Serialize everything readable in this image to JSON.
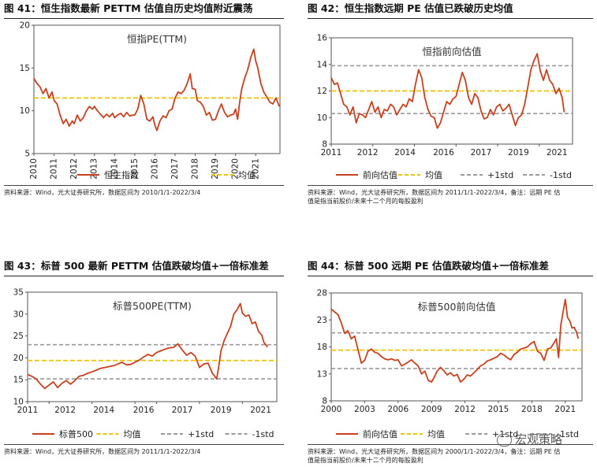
{
  "panels": [
    {
      "id": "p41",
      "title": "图 41：恒生指数最新 PETTM 估值自历史均值附近震荡",
      "source": "资料来源：Wind，光大证券研究所，数据区间为 2010/1/1-2022/3/4",
      "legend": [
        {
          "label": "恒生指数",
          "kind": "series"
        },
        {
          "label": "均值",
          "kind": "mean"
        }
      ]
    },
    {
      "id": "p42",
      "title": "图 42：恒生指数远期 PE 估值已跌破历史均值",
      "source": "资料来源：Wind，光大证券研究所，数据区间为 2011/1/1-2022/3/4，备注：远期 PE 估值是指当前股价/未来十二个月的每股盈利",
      "source_lines": [
        "资料来源：Wind，光大证券研究所，数据区间为 2011/1/1-2022/3/4，备注：远期 PE 估",
        "值是指当前股价/未来十二个月的每股盈利"
      ],
      "legend": [
        {
          "label": "前向估值",
          "kind": "series"
        },
        {
          "label": "均值",
          "kind": "mean"
        },
        {
          "label": "+1std",
          "kind": "std"
        },
        {
          "label": "-1std",
          "kind": "std"
        }
      ]
    },
    {
      "id": "p43",
      "title": "图 43：标普 500 最新 PETTM 估值跌破均值+一倍标准差",
      "source": "资料来源：Wind，光大证券研究所，数据区间为 2011/1/1-2022/3/4",
      "legend": [
        {
          "label": "标普500",
          "kind": "series"
        },
        {
          "label": "均值",
          "kind": "mean"
        },
        {
          "label": "+1std",
          "kind": "std"
        },
        {
          "label": "-1std",
          "kind": "std"
        }
      ]
    },
    {
      "id": "p44",
      "title": "图 44：标普 500 远期 PE 估值跌破均值+一倍标准差",
      "source": "资料来源：Wind，光大证券研究所，数据区间为 2000/1/1-2022/3/4，备注：远期 PE 估值是指当前股价/未来十二个月的每股盈利",
      "source_lines": [
        "资料来源：Wind，光大证券研究所，数据区间为 2000/1/1-2022/3/4，备注：远期 PE 估",
        "值是指当前股价/未来十二个月的每股盈利"
      ],
      "legend": [
        {
          "label": "前向估值",
          "kind": "series"
        },
        {
          "label": "均值",
          "kind": "mean"
        },
        {
          "label": "+1std",
          "kind": "std"
        },
        {
          "label": "-1std",
          "kind": "std"
        }
      ]
    }
  ],
  "watermark": "宏观策略",
  "colors": {
    "series": "#c8401e",
    "mean": "#f2c200",
    "std": "#9a9a9a",
    "axis": "#555555"
  },
  "chart_data": [
    {
      "type": "line",
      "title": "恒指PE(TTM)",
      "ylim": [
        5,
        20
      ],
      "yticks": [
        5,
        10,
        15,
        20
      ],
      "xlim": [
        2010,
        2022.2
      ],
      "xticks": [
        2010,
        2011,
        2012,
        2013,
        2014,
        2015,
        2016,
        2017,
        2018,
        2019,
        2020,
        2021
      ],
      "mean": 11.5,
      "series": [
        {
          "name": "恒生指数",
          "x": [
            2010.0,
            2010.15,
            2010.3,
            2010.45,
            2010.6,
            2010.75,
            2010.9,
            2011.0,
            2011.15,
            2011.3,
            2011.45,
            2011.6,
            2011.75,
            2011.9,
            2012.0,
            2012.15,
            2012.3,
            2012.45,
            2012.6,
            2012.75,
            2012.9,
            2013.0,
            2013.15,
            2013.3,
            2013.45,
            2013.6,
            2013.75,
            2013.9,
            2014.0,
            2014.15,
            2014.3,
            2014.45,
            2014.6,
            2014.75,
            2014.9,
            2015.0,
            2015.15,
            2015.3,
            2015.45,
            2015.6,
            2015.75,
            2015.9,
            2016.0,
            2016.1,
            2016.25,
            2016.4,
            2016.55,
            2016.7,
            2016.85,
            2017.0,
            2017.15,
            2017.3,
            2017.45,
            2017.6,
            2017.75,
            2017.85,
            2018.0,
            2018.1,
            2018.25,
            2018.4,
            2018.55,
            2018.7,
            2018.85,
            2019.0,
            2019.15,
            2019.3,
            2019.45,
            2019.6,
            2019.75,
            2019.9,
            2020.0,
            2020.1,
            2020.2,
            2020.3,
            2020.45,
            2020.6,
            2020.75,
            2020.9,
            2021.0,
            2021.1,
            2021.25,
            2021.4,
            2021.55,
            2021.7,
            2021.85,
            2022.0,
            2022.17
          ],
          "values": [
            13.8,
            13.2,
            12.8,
            12.0,
            12.6,
            11.5,
            12.2,
            11.2,
            10.8,
            9.5,
            8.5,
            9.0,
            8.2,
            8.8,
            8.5,
            9.5,
            8.8,
            9.2,
            10.0,
            10.5,
            10.2,
            10.5,
            10.0,
            9.6,
            9.2,
            9.6,
            9.3,
            9.7,
            9.2,
            9.5,
            9.7,
            9.3,
            9.8,
            9.4,
            9.5,
            9.5,
            10.2,
            11.8,
            10.8,
            9.0,
            8.8,
            9.3,
            8.3,
            7.7,
            8.8,
            9.4,
            9.2,
            10.0,
            10.2,
            11.5,
            12.2,
            12.0,
            12.4,
            13.2,
            14.3,
            12.6,
            12.5,
            11.2,
            11.0,
            10.5,
            9.5,
            9.8,
            8.9,
            9.0,
            10.0,
            10.8,
            9.8,
            9.3,
            9.5,
            9.6,
            10.2,
            9.0,
            11.0,
            12.5,
            13.8,
            14.8,
            16.2,
            17.2,
            15.8,
            15.0,
            13.2,
            12.2,
            11.6,
            11.0,
            10.8,
            11.5,
            10.5
          ]
        }
      ]
    },
    {
      "type": "line",
      "title": "恒指前向估值",
      "ylim": [
        8,
        16
      ],
      "yticks": [
        8,
        10,
        12,
        14,
        16
      ],
      "xlim": [
        2011,
        2022.6
      ],
      "xticks": [
        2011,
        2013,
        2015,
        2017,
        2019,
        2021
      ],
      "xticklabels": [
        "2011",
        "2012",
        "2014",
        "2016",
        "2017",
        "2019",
        "2021"
      ],
      "xticklabel_x": [
        2011,
        2012.75,
        2014.55,
        2016.4,
        2018.2,
        2020.0,
        2021.85
      ],
      "mean": 12.0,
      "std_upper": 13.9,
      "std_lower": 10.3,
      "series": [
        {
          "name": "前向估值",
          "x": [
            2011.0,
            2011.15,
            2011.3,
            2011.45,
            2011.6,
            2011.75,
            2011.9,
            2012.05,
            2012.2,
            2012.35,
            2012.5,
            2012.65,
            2012.8,
            2012.95,
            2013.1,
            2013.25,
            2013.4,
            2013.55,
            2013.7,
            2013.85,
            2014.0,
            2014.15,
            2014.3,
            2014.45,
            2014.6,
            2014.75,
            2014.9,
            2015.05,
            2015.2,
            2015.35,
            2015.5,
            2015.65,
            2015.8,
            2015.95,
            2016.1,
            2016.25,
            2016.4,
            2016.55,
            2016.7,
            2016.85,
            2017.0,
            2017.15,
            2017.3,
            2017.45,
            2017.6,
            2017.75,
            2017.9,
            2018.05,
            2018.2,
            2018.35,
            2018.5,
            2018.65,
            2018.8,
            2018.95,
            2019.1,
            2019.25,
            2019.4,
            2019.55,
            2019.7,
            2019.85,
            2020.0,
            2020.15,
            2020.3,
            2020.45,
            2020.6,
            2020.75,
            2020.9,
            2021.05,
            2021.2,
            2021.35,
            2021.5,
            2021.65,
            2021.8,
            2021.95,
            2022.1,
            2022.2
          ],
          "values": [
            13.0,
            12.5,
            12.6,
            11.8,
            11.0,
            10.8,
            10.2,
            10.8,
            9.6,
            10.3,
            10.2,
            10.0,
            10.6,
            11.2,
            10.4,
            10.8,
            10.0,
            10.6,
            10.5,
            11.0,
            10.8,
            10.2,
            10.6,
            11.0,
            10.8,
            11.4,
            11.2,
            12.5,
            13.6,
            13.0,
            11.5,
            10.6,
            10.1,
            10.0,
            9.2,
            9.6,
            10.4,
            11.2,
            11.0,
            11.4,
            11.6,
            12.5,
            13.4,
            12.8,
            11.5,
            11.0,
            11.8,
            11.5,
            10.5,
            9.9,
            10.0,
            10.6,
            10.2,
            10.8,
            11.0,
            10.5,
            10.7,
            11.0,
            10.2,
            9.4,
            10.0,
            10.2,
            11.0,
            12.3,
            13.6,
            14.3,
            14.8,
            13.5,
            12.8,
            13.6,
            12.8,
            12.5,
            11.8,
            12.2,
            11.5,
            10.4
          ]
        }
      ]
    },
    {
      "type": "line",
      "title": "标普500PE(TTM)",
      "ylim": [
        10,
        35
      ],
      "yticks": [
        10,
        15,
        20,
        25,
        30,
        35
      ],
      "xlim": [
        2011,
        2022.6
      ],
      "xticks": [
        2011,
        2012,
        2014,
        2016,
        2017,
        2019,
        2021
      ],
      "xticklabels": [
        "2011",
        "2012",
        "2014",
        "2016",
        "2017",
        "2019",
        "2021"
      ],
      "xticklabel_x": [
        2011,
        2012.75,
        2014.55,
        2016.4,
        2018.2,
        2020.0,
        2021.85
      ],
      "mean": 19.4,
      "std_upper": 23.0,
      "std_lower": 15.2,
      "series": [
        {
          "name": "标普500",
          "x": [
            2011.0,
            2011.2,
            2011.4,
            2011.6,
            2011.8,
            2012.0,
            2012.2,
            2012.4,
            2012.6,
            2012.8,
            2013.0,
            2013.2,
            2013.4,
            2013.6,
            2013.8,
            2014.0,
            2014.2,
            2014.4,
            2014.6,
            2014.8,
            2015.0,
            2015.2,
            2015.4,
            2015.6,
            2015.8,
            2016.0,
            2016.2,
            2016.4,
            2016.6,
            2016.8,
            2017.0,
            2017.2,
            2017.4,
            2017.6,
            2017.8,
            2018.0,
            2018.2,
            2018.4,
            2018.6,
            2018.8,
            2019.0,
            2019.2,
            2019.4,
            2019.6,
            2019.8,
            2019.9,
            2020.0,
            2020.15,
            2020.3,
            2020.45,
            2020.6,
            2020.75,
            2020.9,
            2021.0,
            2021.15,
            2021.3,
            2021.45,
            2021.6,
            2021.75,
            2021.9,
            2022.0,
            2022.17
          ],
          "values": [
            16.2,
            15.8,
            15.2,
            14.0,
            13.0,
            13.8,
            14.5,
            13.2,
            14.2,
            14.8,
            14.0,
            14.8,
            15.8,
            16.0,
            16.5,
            16.8,
            17.2,
            17.6,
            17.8,
            18.0,
            18.2,
            18.6,
            19.0,
            18.4,
            18.5,
            19.0,
            19.5,
            20.2,
            20.8,
            20.4,
            21.2,
            21.6,
            22.0,
            22.3,
            22.4,
            23.2,
            21.8,
            20.6,
            21.2,
            20.4,
            17.8,
            18.6,
            18.8,
            16.5,
            15.2,
            18.0,
            21.6,
            24.0,
            25.6,
            27.2,
            30.0,
            31.0,
            32.4,
            30.2,
            29.5,
            29.8,
            27.8,
            28.2,
            26.0,
            25.2,
            23.5,
            22.5
          ]
        }
      ]
    },
    {
      "type": "line",
      "title": "标普500前向估值",
      "ylim": [
        8,
        28
      ],
      "yticks": [
        8,
        13,
        18,
        23,
        28
      ],
      "xlim": [
        2000,
        2022.5
      ],
      "xticks": [
        2000,
        2003,
        2006,
        2009,
        2012,
        2015,
        2018,
        2021
      ],
      "mean": 17.4,
      "std_upper": 20.6,
      "std_lower": 14.0,
      "series": [
        {
          "name": "前向估值",
          "x": [
            2000.0,
            2000.3,
            2000.6,
            2000.9,
            2001.2,
            2001.5,
            2001.8,
            2002.1,
            2002.4,
            2002.7,
            2003.0,
            2003.3,
            2003.6,
            2003.9,
            2004.2,
            2004.5,
            2004.8,
            2005.1,
            2005.4,
            2005.7,
            2006.0,
            2006.3,
            2006.6,
            2006.9,
            2007.2,
            2007.5,
            2007.8,
            2008.1,
            2008.4,
            2008.7,
            2009.0,
            2009.2,
            2009.5,
            2009.8,
            2010.1,
            2010.4,
            2010.7,
            2011.0,
            2011.3,
            2011.6,
            2011.9,
            2012.2,
            2012.5,
            2012.8,
            2013.1,
            2013.4,
            2013.7,
            2014.0,
            2014.3,
            2014.6,
            2014.9,
            2015.2,
            2015.5,
            2015.8,
            2016.1,
            2016.4,
            2016.7,
            2017.0,
            2017.3,
            2017.6,
            2017.9,
            2018.2,
            2018.5,
            2018.8,
            2019.1,
            2019.4,
            2019.7,
            2020.0,
            2020.2,
            2020.4,
            2020.6,
            2020.8,
            2021.0,
            2021.2,
            2021.4,
            2021.6,
            2021.8,
            2022.0,
            2022.17
          ],
          "values": [
            25.0,
            24.5,
            24.0,
            22.5,
            20.5,
            21.0,
            19.5,
            20.0,
            17.5,
            15.0,
            15.5,
            17.2,
            17.6,
            17.0,
            16.8,
            16.2,
            15.8,
            15.6,
            15.8,
            15.5,
            15.6,
            14.5,
            14.8,
            15.2,
            15.6,
            15.0,
            14.5,
            13.0,
            13.5,
            11.8,
            11.5,
            12.2,
            13.5,
            14.2,
            13.6,
            12.8,
            13.2,
            12.6,
            12.9,
            11.5,
            12.0,
            12.8,
            12.6,
            13.2,
            13.8,
            14.5,
            14.8,
            15.4,
            15.6,
            15.9,
            16.2,
            16.8,
            16.5,
            16.0,
            15.6,
            16.6,
            17.0,
            17.6,
            17.8,
            18.0,
            18.6,
            19.0,
            17.2,
            16.8,
            15.5,
            17.6,
            17.8,
            18.8,
            19.5,
            16.0,
            22.0,
            24.5,
            26.8,
            23.5,
            22.8,
            21.5,
            21.6,
            20.8,
            19.5
          ]
        }
      ]
    }
  ]
}
